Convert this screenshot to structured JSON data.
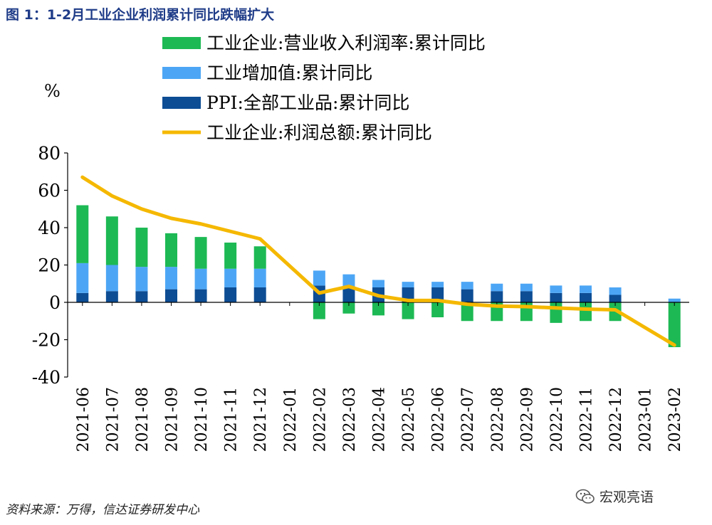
{
  "figure_title": "图 1：1-2月工业企业利润累计同比跌幅扩大",
  "source_note": "资料来源：万得，信达证券研发中心",
  "watermark": "宏观亮语",
  "colors": {
    "revenue_margin": "#1db954",
    "value_added": "#4da6f5",
    "ppi": "#0d4d94",
    "profit_total": "#f5b800",
    "title": "#1f3c88"
  },
  "chart_data": {
    "type": "bar",
    "stacked": true,
    "unit_label": "%",
    "ylim": [
      -40,
      80
    ],
    "yticks": [
      80,
      60,
      40,
      20,
      0,
      -20,
      -40
    ],
    "categories": [
      "2021-06",
      "2021-07",
      "2021-08",
      "2021-09",
      "2021-10",
      "2021-11",
      "2021-12",
      "2022-01",
      "2022-02",
      "2022-03",
      "2022-04",
      "2022-05",
      "2022-06",
      "2022-07",
      "2022-08",
      "2022-09",
      "2022-10",
      "2022-11",
      "2022-12",
      "2023-01",
      "2023-02"
    ],
    "series": [
      {
        "name": "工业企业:营业收入利润率:累计同比",
        "kind": "bar",
        "values": [
          31,
          26,
          21,
          18,
          17,
          14,
          12,
          null,
          -9,
          -6,
          -7,
          -9,
          -8,
          -10,
          -10,
          -10,
          -11,
          -10,
          -10,
          null,
          -24
        ]
      },
      {
        "name": "工业增加值:累计同比",
        "kind": "bar",
        "values": [
          16,
          14,
          13,
          12,
          11,
          10,
          10,
          null,
          8,
          7,
          4,
          3,
          3,
          4,
          4,
          4,
          4,
          4,
          4,
          null,
          2
        ]
      },
      {
        "name": "PPI:全部工业品:累计同比",
        "kind": "bar",
        "values": [
          5,
          6,
          6,
          7,
          7,
          8,
          8,
          null,
          9,
          8,
          8,
          8,
          8,
          7,
          6,
          6,
          5,
          5,
          4,
          null,
          0
        ]
      },
      {
        "name": "工业企业:利润总额:累计同比",
        "kind": "line",
        "values": [
          67,
          57,
          50,
          45,
          42,
          38,
          34,
          null,
          5,
          8.5,
          3.5,
          1,
          1,
          -1,
          -2,
          -2.3,
          -3,
          -3.6,
          -4,
          null,
          -22.9
        ]
      }
    ]
  }
}
